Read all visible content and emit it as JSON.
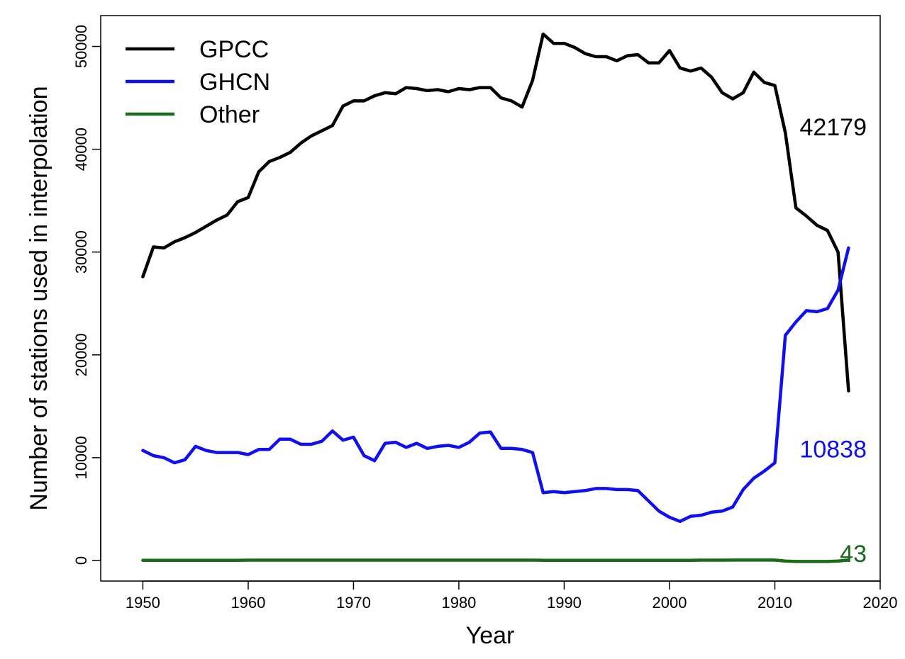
{
  "chart_data": {
    "type": "line",
    "xlabel": "Year",
    "ylabel": "Number of stations used in interpolation",
    "xlim": [
      1946,
      2020
    ],
    "ylim": [
      -2000,
      53000
    ],
    "xticks": [
      1950,
      1960,
      1970,
      1980,
      1990,
      2000,
      2010,
      2020
    ],
    "yticks": [
      0,
      10000,
      20000,
      30000,
      40000,
      50000
    ],
    "grid": false,
    "legend_position": "top-left",
    "x": [
      1950,
      1951,
      1952,
      1953,
      1954,
      1955,
      1956,
      1957,
      1958,
      1959,
      1960,
      1961,
      1962,
      1963,
      1964,
      1965,
      1966,
      1967,
      1968,
      1969,
      1970,
      1971,
      1972,
      1973,
      1974,
      1975,
      1976,
      1977,
      1978,
      1979,
      1980,
      1981,
      1982,
      1983,
      1984,
      1985,
      1986,
      1987,
      1988,
      1989,
      1990,
      1991,
      1992,
      1993,
      1994,
      1995,
      1996,
      1997,
      1998,
      1999,
      2000,
      2001,
      2002,
      2003,
      2004,
      2005,
      2006,
      2007,
      2008,
      2009,
      2010,
      2011,
      2012,
      2013,
      2014,
      2015,
      2016,
      2017
    ],
    "series": [
      {
        "name": "GPCC",
        "color": "#000000",
        "end_label": "42179",
        "values": [
          27600,
          30500,
          30400,
          31000,
          31400,
          31900,
          32500,
          33100,
          33600,
          34900,
          35300,
          37800,
          38800,
          39200,
          39700,
          40600,
          41300,
          41800,
          42300,
          44200,
          44700,
          44700,
          45200,
          45500,
          45400,
          46000,
          45900,
          45700,
          45800,
          45600,
          45900,
          45800,
          46000,
          46000,
          45000,
          44700,
          44100,
          46700,
          51200,
          50300,
          50300,
          49900,
          49300,
          49000,
          49000,
          48600,
          49100,
          49200,
          48400,
          48400,
          49600,
          47900,
          47600,
          47900,
          47000,
          45500,
          44900,
          45500,
          47500,
          46500,
          46200,
          41600,
          34300,
          33500,
          32600,
          32100,
          30000,
          16500
        ]
      },
      {
        "name": "GHCN",
        "color": "#1010ee",
        "end_label": "10838",
        "values": [
          10700,
          10200,
          10000,
          9500,
          9800,
          11100,
          10700,
          10500,
          10500,
          10500,
          10300,
          10800,
          10800,
          11800,
          11800,
          11300,
          11300,
          11600,
          12600,
          11700,
          12000,
          10200,
          9700,
          11400,
          11500,
          11000,
          11400,
          10900,
          11100,
          11200,
          11000,
          11500,
          12400,
          12500,
          10900,
          10900,
          10800,
          10500,
          6600,
          6700,
          6600,
          6700,
          6800,
          7000,
          7000,
          6900,
          6900,
          6800,
          5800,
          4800,
          4200,
          3800,
          4300,
          4400,
          4700,
          4800,
          5200,
          6900,
          8000,
          8700,
          9500,
          21900,
          23200,
          24300,
          24200,
          24500,
          26300,
          30400
        ]
      },
      {
        "name": "Other",
        "color": "#1a6b1a",
        "end_label": "43",
        "values": [
          10,
          10,
          10,
          10,
          10,
          10,
          20,
          20,
          20,
          20,
          30,
          30,
          30,
          30,
          30,
          30,
          30,
          30,
          30,
          30,
          30,
          30,
          30,
          30,
          30,
          30,
          30,
          30,
          30,
          30,
          30,
          30,
          30,
          30,
          30,
          30,
          30,
          30,
          20,
          20,
          20,
          20,
          20,
          20,
          20,
          20,
          20,
          20,
          20,
          20,
          20,
          20,
          20,
          30,
          30,
          30,
          40,
          40,
          40,
          40,
          40,
          -50,
          -100,
          -100,
          -100,
          -100,
          -50,
          43
        ]
      }
    ]
  }
}
